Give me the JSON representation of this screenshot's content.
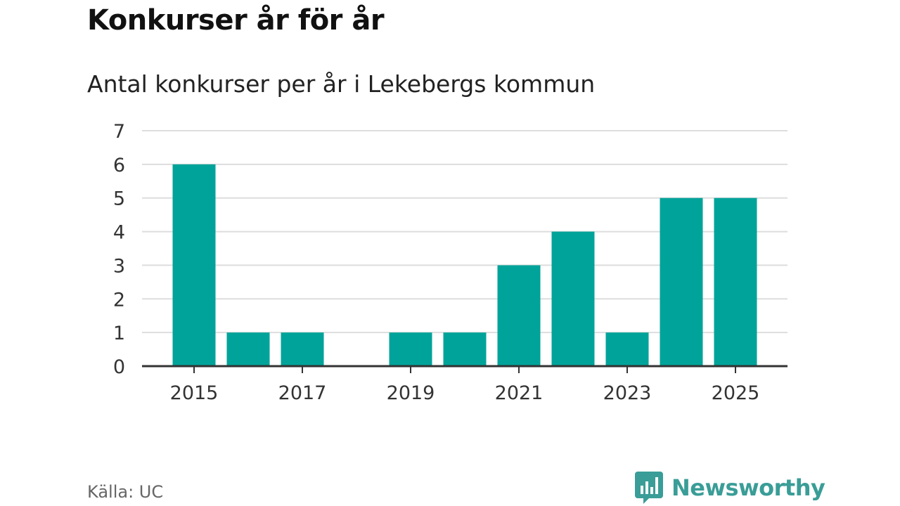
{
  "title": "Konkurser år för år",
  "subtitle": "Antal konkurser per år i Lekebergs kommun",
  "source": "Källa: UC",
  "brand": {
    "name": "Newsworthy",
    "color": "#3a9d97"
  },
  "chart_data": {
    "type": "bar",
    "title": "Konkurser år för år",
    "subtitle": "Antal konkurser per år i Lekebergs kommun",
    "categories": [
      "2015",
      "2016",
      "2017",
      "2018",
      "2019",
      "2020",
      "2021",
      "2022",
      "2023",
      "2024",
      "2025"
    ],
    "values": [
      6,
      1,
      1,
      0,
      1,
      1,
      3,
      4,
      1,
      5,
      5
    ],
    "x_tick_labels": [
      "2015",
      "2017",
      "2019",
      "2021",
      "2023",
      "2025"
    ],
    "y_ticks": [
      0,
      1,
      2,
      3,
      4,
      5,
      6,
      7
    ],
    "ylim": [
      0,
      7
    ],
    "xlabel": "",
    "ylabel": "",
    "grid": true,
    "bar_color": "#00a39a"
  }
}
